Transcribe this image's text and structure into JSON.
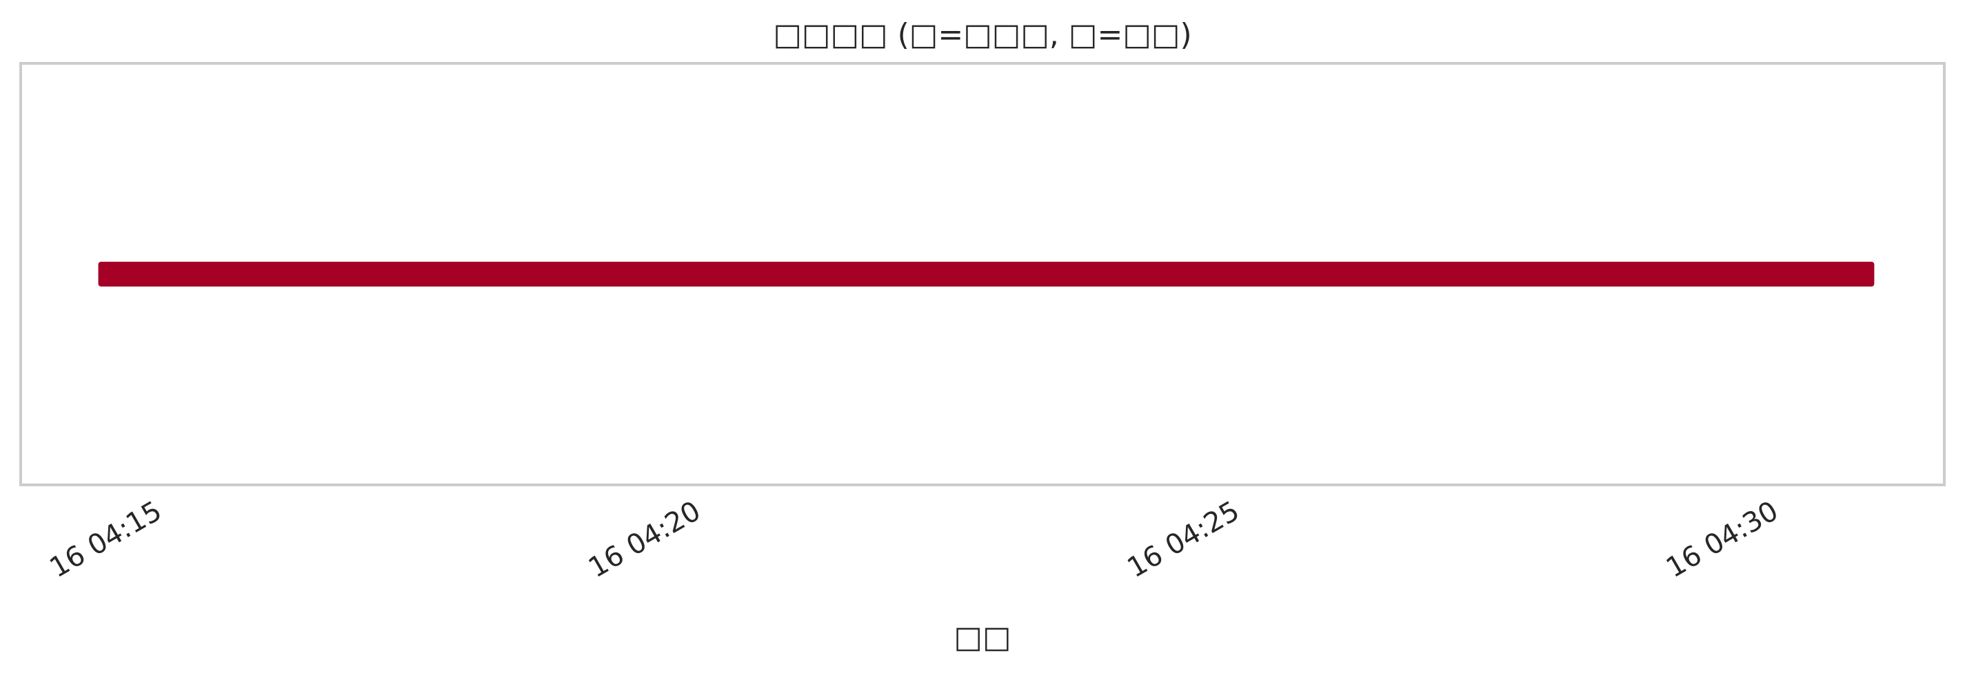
{
  "chart_data": {
    "type": "bar",
    "title": "□□□□ (□=□□□, □=□□)",
    "xlabel": "□□",
    "ylabel": "",
    "x_ticks": [
      "16 04:15",
      "16 04:20",
      "16 04:25",
      "16 04:30"
    ],
    "tick_minutes": [
      15,
      20,
      25,
      30
    ],
    "xlim_minutes": [
      13.75,
      31.6
    ],
    "grid": false,
    "legend": "none",
    "series": [
      {
        "start_minute": 14.47,
        "end_minute": 30.95,
        "color": "#a50026"
      }
    ]
  }
}
